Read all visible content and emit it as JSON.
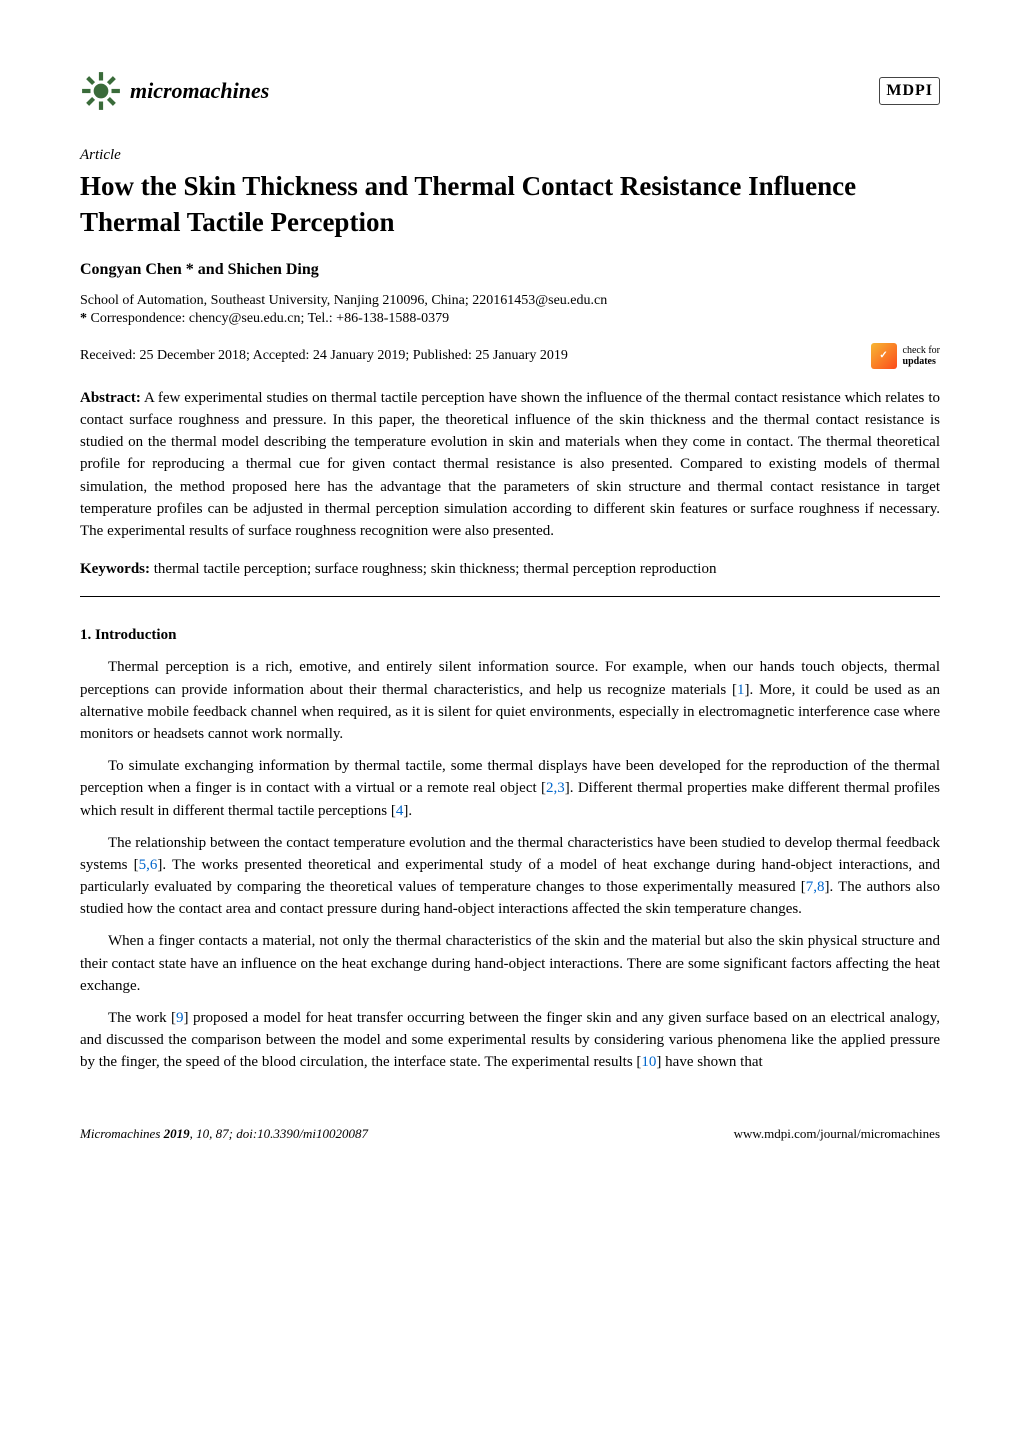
{
  "header": {
    "journal_name": "micromachines",
    "publisher": "MDPI"
  },
  "article": {
    "type": "Article",
    "title": "How the Skin Thickness and Thermal Contact Resistance Influence Thermal Tactile Perception",
    "authors": "Congyan Chen * and Shichen Ding",
    "affiliation": "School of Automation, Southeast University, Nanjing 210096, China; 220161453@seu.edu.cn",
    "correspondence_label": "*",
    "correspondence": "Correspondence: chency@seu.edu.cn; Tel.: +86-138-1588-0379",
    "received": "Received: 25 December 2018; Accepted: 24 January 2019; Published: 25 January 2019",
    "check_updates_text": "check for",
    "check_updates_text2": "updates"
  },
  "abstract": {
    "label": "Abstract:",
    "text": "A few experimental studies on thermal tactile perception have shown the influence of the thermal contact resistance which relates to contact surface roughness and pressure. In this paper, the theoretical influence of the skin thickness and the thermal contact resistance is studied on the thermal model describing the temperature evolution in skin and materials when they come in contact. The thermal theoretical profile for reproducing a thermal cue for given contact thermal resistance is also presented. Compared to existing models of thermal simulation, the method proposed here has the advantage that the parameters of skin structure and thermal contact resistance in target temperature profiles can be adjusted in thermal perception simulation according to different skin features or surface roughness if necessary. The experimental results of surface roughness recognition were also presented."
  },
  "keywords": {
    "label": "Keywords:",
    "text": "thermal tactile perception; surface roughness; skin thickness; thermal perception reproduction"
  },
  "section1": {
    "heading": "1. Introduction",
    "p1": "Thermal perception is a rich, emotive, and entirely silent information source. For example, when our hands touch objects, thermal perceptions can provide information about their thermal characteristics, and help us recognize materials [1]. More, it could be used as an alternative mobile feedback channel when required, as it is silent for quiet environments, especially in electromagnetic interference case where monitors or headsets cannot work normally.",
    "p2": "To simulate exchanging information by thermal tactile, some thermal displays have been developed for the reproduction of the thermal perception when a finger is in contact with a virtual or a remote real object [2,3]. Different thermal properties make different thermal profiles which result in different thermal tactile perceptions [4].",
    "p3": "The relationship between the contact temperature evolution and the thermal characteristics have been studied to develop thermal feedback systems [5,6]. The works presented theoretical and experimental study of a model of heat exchange during hand-object interactions, and particularly evaluated by comparing the theoretical values of temperature changes to those experimentally measured [7,8]. The authors also studied how the contact area and contact pressure during hand-object interactions affected the skin temperature changes.",
    "p4": "When a finger contacts a material, not only the thermal characteristics of the skin and the material but also the skin physical structure and their contact state have an influence on the heat exchange during hand-object interactions. There are some significant factors affecting the heat exchange.",
    "p5": "The work [9] proposed a model for heat transfer occurring between the finger skin and any given surface based on an electrical analogy, and discussed the comparison between the model and some experimental results by considering various phenomena like the applied pressure by the finger, the speed of the blood circulation, the interface state. The experimental results [10] have shown that"
  },
  "footer": {
    "left_journal": "Micromachines",
    "left_year": "2019",
    "left_vol": "10",
    "left_page": "87; doi:10.3390/mi10020087",
    "right": "www.mdpi.com/journal/micromachines"
  },
  "colors": {
    "link": "#0066cc",
    "text": "#000000",
    "bg": "#ffffff",
    "check_grad_a": "#f7b733",
    "check_grad_b": "#fc4a1a"
  },
  "fonts": {
    "body_family": "Palatino Linotype",
    "title_size_pt": 20,
    "body_size_pt": 11,
    "journal_size_pt": 16
  }
}
